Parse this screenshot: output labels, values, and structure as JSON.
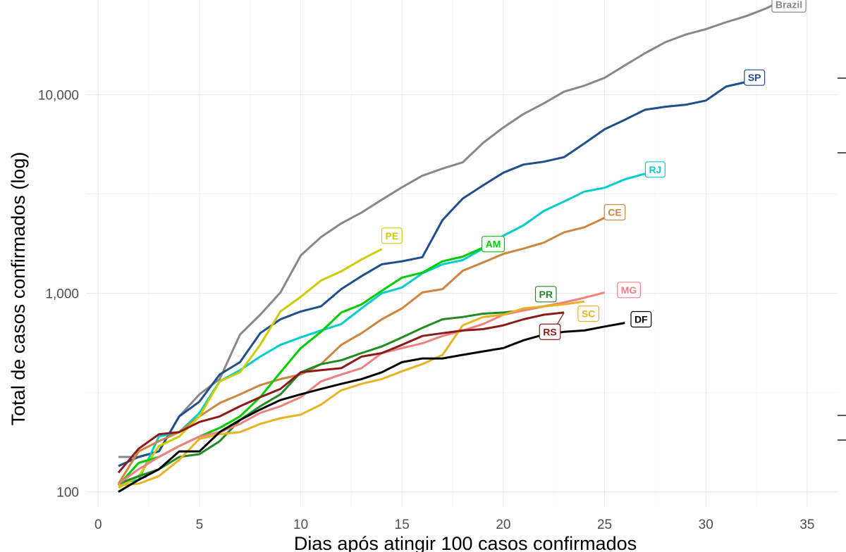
{
  "chart_data": {
    "type": "line",
    "title": "",
    "xlabel": "Dias após atingir 100 casos confirmados",
    "ylabel": "Total de casos confirmados (log)",
    "y_scale": "log",
    "xlim": [
      -0.6,
      36.5
    ],
    "ylim": [
      84,
      30000
    ],
    "x_ticks": [
      0,
      5,
      10,
      15,
      20,
      25,
      30,
      35
    ],
    "x_tick_labels": [
      "0",
      "5",
      "10",
      "15",
      "20",
      "25",
      "30",
      "35"
    ],
    "y_ticks": [
      100,
      1000,
      10000
    ],
    "y_tick_labels": [
      "100",
      "1,000",
      "10,000"
    ],
    "grid": true,
    "legend": "labels at line ends",
    "series": [
      {
        "name": "Brazil",
        "color": "#888888",
        "x": [
          1,
          2,
          3,
          4,
          5,
          6,
          7,
          8,
          9,
          10,
          11,
          12,
          13,
          14,
          15,
          16,
          17,
          18,
          19,
          20,
          21,
          22,
          23,
          24,
          25,
          26,
          27,
          28,
          29,
          30,
          31,
          32,
          33,
          34
        ],
        "y": [
          150,
          150,
          160,
          240,
          310,
          370,
          620,
          780,
          1010,
          1550,
          1920,
          2250,
          2550,
          2960,
          3420,
          3910,
          4250,
          4570,
          5720,
          6840,
          8000,
          9050,
          10360,
          11110,
          12170,
          14050,
          16200,
          18400,
          20100,
          21400,
          23200,
          24900,
          27300,
          30700
        ]
      },
      {
        "name": "SP",
        "color": "#1f4e8c",
        "x": [
          1,
          2,
          3,
          4,
          5,
          6,
          7,
          8,
          9,
          10,
          11,
          12,
          13,
          14,
          15,
          16,
          17,
          18,
          19,
          20,
          21,
          22,
          23,
          24,
          25,
          26,
          27,
          28,
          29,
          30,
          31,
          32
        ],
        "y": [
          135,
          150,
          160,
          240,
          285,
          390,
          450,
          630,
          740,
          810,
          860,
          1050,
          1220,
          1400,
          1450,
          1520,
          2340,
          3000,
          3500,
          4050,
          4450,
          4600,
          4850,
          5680,
          6700,
          7480,
          8400,
          8700,
          8900,
          9350,
          11000,
          11600
        ]
      },
      {
        "name": "RJ",
        "color": "#00cccc",
        "x": [
          1,
          2,
          3,
          4,
          5,
          6,
          7,
          8,
          9,
          10,
          11,
          12,
          13,
          14,
          15,
          16,
          17,
          18,
          19,
          20,
          21,
          22,
          23,
          24,
          25,
          26,
          27
        ],
        "y": [
          110,
          115,
          190,
          200,
          250,
          360,
          410,
          480,
          550,
          600,
          650,
          700,
          840,
          1000,
          1070,
          1260,
          1400,
          1470,
          1680,
          1950,
          2200,
          2600,
          2900,
          3250,
          3400,
          3750,
          4000
        ]
      },
      {
        "name": "CE",
        "color": "#cd853f",
        "x": [
          1,
          2,
          3,
          4,
          5,
          6,
          7,
          8,
          9,
          10,
          11,
          12,
          13,
          14,
          15,
          16,
          17,
          18,
          19,
          20,
          21,
          22,
          23,
          24,
          25
        ],
        "y": [
          110,
          160,
          180,
          200,
          240,
          280,
          310,
          345,
          370,
          390,
          440,
          550,
          630,
          740,
          840,
          1010,
          1050,
          1300,
          1430,
          1580,
          1680,
          1800,
          2030,
          2150,
          2400
        ]
      },
      {
        "name": "PE",
        "color": "#cccc00",
        "x": [
          1,
          2,
          3,
          4,
          5,
          6,
          7,
          8,
          9,
          10,
          11,
          12,
          13,
          14
        ],
        "y": [
          105,
          120,
          170,
          190,
          240,
          360,
          400,
          550,
          810,
          960,
          1160,
          1290,
          1480,
          1670
        ]
      },
      {
        "name": "AM",
        "color": "#00cc00",
        "x": [
          1,
          2,
          3,
          4,
          5,
          6,
          7,
          8,
          9,
          10,
          11,
          12,
          13,
          14,
          15,
          16,
          17,
          18,
          19
        ],
        "y": [
          108,
          140,
          150,
          170,
          190,
          210,
          240,
          300,
          400,
          530,
          640,
          800,
          880,
          1030,
          1200,
          1270,
          1450,
          1530,
          1700
        ]
      },
      {
        "name": "PR",
        "color": "#228b22",
        "x": [
          1,
          2,
          3,
          4,
          5,
          6,
          7,
          8,
          9,
          10,
          11,
          12,
          13,
          14,
          15,
          16,
          17,
          18,
          19,
          20,
          21,
          22
        ],
        "y": [
          110,
          120,
          130,
          150,
          155,
          180,
          230,
          270,
          310,
          400,
          440,
          460,
          500,
          540,
          600,
          670,
          740,
          760,
          790,
          800,
          820,
          860
        ]
      },
      {
        "name": "MG",
        "color": "#f08080",
        "x": [
          1,
          2,
          3,
          4,
          5,
          6,
          7,
          8,
          9,
          10,
          11,
          12,
          13,
          14,
          15,
          16,
          17,
          18,
          19,
          20,
          21,
          22,
          23,
          24,
          25
        ],
        "y": [
          110,
          130,
          150,
          170,
          190,
          200,
          220,
          250,
          270,
          300,
          360,
          390,
          420,
          500,
          530,
          560,
          610,
          650,
          700,
          780,
          820,
          860,
          900,
          950,
          1010
        ]
      },
      {
        "name": "SC",
        "color": "#e6b422",
        "x": [
          1,
          2,
          3,
          4,
          5,
          6,
          7,
          8,
          9,
          10,
          11,
          12,
          13,
          14,
          15,
          16,
          17,
          18,
          19,
          20,
          21,
          22,
          23,
          24
        ],
        "y": [
          108,
          110,
          120,
          145,
          185,
          195,
          200,
          220,
          235,
          245,
          275,
          325,
          350,
          370,
          405,
          440,
          490,
          690,
          760,
          780,
          840,
          860,
          880,
          910
        ]
      },
      {
        "name": "RS",
        "color": "#8b1a1a",
        "x": [
          1,
          2,
          3,
          4,
          5,
          6,
          7,
          8,
          9,
          10,
          11,
          12,
          13,
          14,
          15,
          16,
          17,
          18,
          19,
          20,
          21,
          22,
          23
        ],
        "y": [
          125,
          165,
          195,
          200,
          225,
          240,
          270,
          300,
          330,
          400,
          410,
          420,
          480,
          500,
          550,
          610,
          630,
          650,
          660,
          690,
          740,
          780,
          800
        ]
      },
      {
        "name": "DF",
        "color": "#000000",
        "x": [
          1,
          2,
          3,
          4,
          5,
          6,
          7,
          8,
          9,
          10,
          11,
          12,
          13,
          14,
          15,
          16,
          17,
          18,
          19,
          20,
          21,
          22,
          23,
          24,
          25,
          26
        ],
        "y": [
          100,
          115,
          130,
          160,
          160,
          200,
          230,
          260,
          290,
          310,
          330,
          350,
          370,
          400,
          450,
          470,
          470,
          490,
          510,
          530,
          580,
          620,
          640,
          650,
          680,
          710
        ]
      }
    ],
    "labels": [
      {
        "text": "Brazil",
        "series": "Brazil",
        "x": 34.1,
        "y": 28500,
        "text_color": "#888888"
      },
      {
        "text": "SP",
        "series": "SP",
        "x": 32.4,
        "y": 12200,
        "text_color": "#1f4e8c"
      },
      {
        "text": "RJ",
        "series": "RJ",
        "x": 27.5,
        "y": 4200,
        "text_color": "#00cccc"
      },
      {
        "text": "CE",
        "series": "CE",
        "x": 25.5,
        "y": 2560,
        "text_color": "#cd853f"
      },
      {
        "text": "PE",
        "series": "PE",
        "x": 14.5,
        "y": 1950,
        "text_color": "#cccc00"
      },
      {
        "text": "AM",
        "series": "AM",
        "x": 19.5,
        "y": 1770,
        "text_color": "#00cc00"
      },
      {
        "text": "PR",
        "series": "PR",
        "x": 22.1,
        "y": 990,
        "text_color": "#228b22"
      },
      {
        "text": "MG",
        "series": "MG",
        "x": 26.2,
        "y": 1040,
        "text_color": "#f08080"
      },
      {
        "text": "SC",
        "series": "SC",
        "x": 24.2,
        "y": 790,
        "text_color": "#e6b422"
      },
      {
        "text": "RS",
        "series": "RS",
        "x": 22.3,
        "y": 640,
        "text_color": "#8b1a1a",
        "leader_to": [
          23,
          800
        ]
      },
      {
        "text": "DF",
        "series": "DF",
        "x": 26.8,
        "y": 740,
        "text_color": "#000000"
      }
    ]
  }
}
